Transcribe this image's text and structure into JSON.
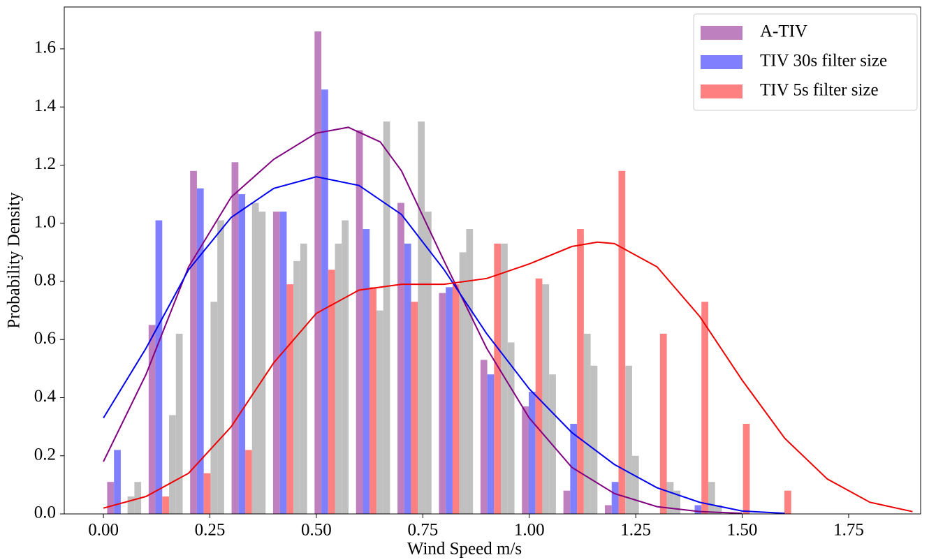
{
  "chart_data": {
    "type": "histogram",
    "x_label": "Wind Speed m/s",
    "y_label": "Probability Density",
    "bins": [
      0,
      0.0974,
      0.1948,
      0.2922,
      0.3896,
      0.487,
      0.5844,
      0.6818,
      0.7792,
      0.8766,
      0.974,
      1.0714,
      1.1688,
      1.2662,
      1.3636,
      1.461,
      1.5584,
      1.6558
    ],
    "series": [
      {
        "name": "A-TIV",
        "color": "#bf80bf",
        "values": [
          0.11,
          0.65,
          1.18,
          1.21,
          1.04,
          1.66,
          1.32,
          1.07,
          0.76,
          0.53,
          0.37,
          0.08,
          0.03,
          0,
          0,
          0,
          0
        ]
      },
      {
        "name": "TIV 30s filter size",
        "color": "#8080ff",
        "values": [
          0.22,
          1.01,
          1.12,
          1.1,
          1.04,
          1.46,
          0.98,
          0.93,
          0.78,
          0.48,
          0.42,
          0.31,
          0.11,
          0,
          0.03,
          0,
          0
        ]
      },
      {
        "name": "TIV 5s filter size",
        "color": "#ff8080",
        "values": [
          0,
          0.06,
          0.14,
          0.22,
          0.79,
          0.84,
          0.78,
          0.73,
          0.79,
          0.93,
          0.81,
          0.98,
          1.18,
          0.62,
          0.73,
          0.31,
          0.08
        ]
      },
      {
        "color": "#c0c0c0",
        "values": [
          0.06,
          0.34,
          0.73,
          1.07,
          0.87,
          0.93,
          0.7,
          1.35,
          0.9,
          0.93,
          0.79,
          0.62,
          0.51,
          0.11,
          0.11,
          0,
          0
        ]
      },
      {
        "color": "#c0c0c0",
        "values": [
          0.11,
          0.62,
          1.01,
          1.04,
          0.93,
          1.01,
          1.35,
          1.04,
          0.98,
          0.59,
          0.48,
          0.51,
          0.2,
          0.08,
          0.03,
          0,
          0
        ]
      }
    ],
    "lines": [
      {
        "color": "#800080",
        "x": [
          0,
          0.1,
          0.2,
          0.3,
          0.4,
          0.5,
          0.575,
          0.65,
          0.7,
          0.8,
          0.9,
          1.0,
          1.1,
          1.2,
          1.3,
          1.4,
          1.5
        ],
        "values": [
          0.18,
          0.48,
          0.85,
          1.09,
          1.22,
          1.31,
          1.33,
          1.28,
          1.18,
          0.87,
          0.57,
          0.33,
          0.16,
          0.07,
          0.025,
          0.008,
          0.002
        ]
      },
      {
        "color": "#0000ee",
        "x": [
          0,
          0.1,
          0.2,
          0.3,
          0.4,
          0.5,
          0.6,
          0.7,
          0.8,
          0.9,
          1.0,
          1.1,
          1.2,
          1.3,
          1.4,
          1.5,
          1.6
        ],
        "values": [
          0.33,
          0.57,
          0.84,
          1.02,
          1.12,
          1.16,
          1.13,
          1.03,
          0.84,
          0.62,
          0.43,
          0.28,
          0.17,
          0.09,
          0.04,
          0.01,
          0.002
        ]
      },
      {
        "color": "#ee0000",
        "x": [
          0,
          0.1,
          0.2,
          0.3,
          0.4,
          0.5,
          0.6,
          0.7,
          0.8,
          0.9,
          1.0,
          1.1,
          1.16,
          1.2,
          1.3,
          1.4,
          1.5,
          1.6,
          1.7,
          1.8,
          1.9
        ],
        "values": [
          0.02,
          0.06,
          0.14,
          0.3,
          0.52,
          0.69,
          0.77,
          0.79,
          0.79,
          0.81,
          0.86,
          0.92,
          0.935,
          0.93,
          0.85,
          0.68,
          0.46,
          0.26,
          0.12,
          0.04,
          0.008
        ]
      }
    ],
    "xlim": [
      -0.092,
      1.919
    ],
    "ylim": [
      0,
      1.744
    ],
    "xticks": [
      {
        "value": 0,
        "label": "0.00"
      },
      0.25,
      {
        "value": 0.5,
        "label": "0.50"
      },
      0.75,
      {
        "value": 1,
        "label": "1.00"
      },
      1.25,
      {
        "value": 1.5,
        "label": "1.50"
      },
      1.75
    ],
    "yticks": [
      {
        "value": 0,
        "label": "0.0"
      },
      0.2,
      0.4,
      0.6,
      0.8,
      {
        "value": 1,
        "label": "1.0"
      },
      1.2,
      1.4,
      1.6
    ],
    "legend": "upper right"
  }
}
